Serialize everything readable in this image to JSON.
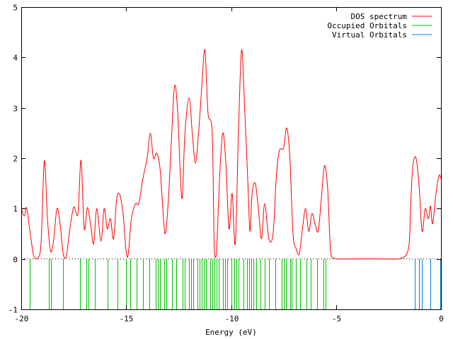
{
  "chart_data": {
    "type": "line",
    "title": "",
    "xlabel": "Energy (eV)",
    "ylabel": "",
    "xlim": [
      -20,
      0
    ],
    "ylim": [
      -1,
      5
    ],
    "x_ticks": [
      -20,
      -15,
      -10,
      -5,
      0
    ],
    "x_tick_labels": [
      "-20",
      "-15",
      "-10",
      "-5",
      "0"
    ],
    "y_ticks": [
      -1,
      0,
      1,
      2,
      3,
      4,
      5
    ],
    "y_tick_labels": [
      "-1",
      "0",
      "1",
      "2",
      "3",
      "4",
      "5"
    ],
    "grid": false,
    "legend_position": "top-right",
    "series": [
      {
        "name": "DOS spectrum",
        "kind": "line",
        "color": "#ff0000",
        "x": [
          -20.0,
          -19.85,
          -19.75,
          -19.6,
          -19.4,
          -19.2,
          -19.05,
          -18.9,
          -18.75,
          -18.6,
          -18.45,
          -18.3,
          -18.15,
          -18.0,
          -17.85,
          -17.7,
          -17.5,
          -17.3,
          -17.15,
          -17.0,
          -16.85,
          -16.7,
          -16.55,
          -16.4,
          -16.2,
          -16.05,
          -15.9,
          -15.75,
          -15.6,
          -15.45,
          -15.3,
          -15.15,
          -15.0,
          -14.9,
          -14.75,
          -14.55,
          -14.4,
          -14.2,
          -14.0,
          -13.85,
          -13.7,
          -13.55,
          -13.4,
          -13.3,
          -13.15,
          -13.0,
          -12.85,
          -12.7,
          -12.55,
          -12.35,
          -12.2,
          -12.0,
          -11.85,
          -11.7,
          -11.55,
          -11.4,
          -11.25,
          -11.1,
          -10.9,
          -10.8,
          -10.7,
          -10.55,
          -10.4,
          -10.25,
          -10.1,
          -9.95,
          -9.8,
          -9.65,
          -9.5,
          -9.35,
          -9.2,
          -9.1,
          -9.0,
          -8.85,
          -8.7,
          -8.55,
          -8.4,
          -8.2,
          -8.0,
          -7.85,
          -7.7,
          -7.5,
          -7.35,
          -7.2,
          -7.05,
          -6.9,
          -6.75,
          -6.6,
          -6.45,
          -6.3,
          -6.15,
          -6.0,
          -5.85,
          -5.7,
          -5.55,
          -5.4,
          -5.25,
          -5.05,
          -4.8,
          -4.0,
          -3.0,
          -2.0,
          -1.55,
          -1.45,
          -1.35,
          -1.2,
          -1.05,
          -0.9,
          -0.75,
          -0.6,
          -0.5,
          -0.4,
          -0.25,
          -0.1,
          0.0
        ],
        "y": [
          1.0,
          0.85,
          1.02,
          0.6,
          0.05,
          0.02,
          0.35,
          1.95,
          0.8,
          0.15,
          0.4,
          1.0,
          0.7,
          0.1,
          0.05,
          0.55,
          1.03,
          0.9,
          1.96,
          0.6,
          1.02,
          0.7,
          0.3,
          1.0,
          0.35,
          1.0,
          0.6,
          0.8,
          0.4,
          1.2,
          1.27,
          0.9,
          0.15,
          0.1,
          0.8,
          1.1,
          1.1,
          1.6,
          2.0,
          2.5,
          2.0,
          2.1,
          1.85,
          1.3,
          0.5,
          1.1,
          2.3,
          3.42,
          2.95,
          1.2,
          2.5,
          3.2,
          2.5,
          1.9,
          2.5,
          3.4,
          4.15,
          2.9,
          2.5,
          0.15,
          0.1,
          1.6,
          2.5,
          1.9,
          0.6,
          1.3,
          0.3,
          2.5,
          4.15,
          2.95,
          1.5,
          0.55,
          1.3,
          1.5,
          1.0,
          0.4,
          1.1,
          0.4,
          0.5,
          1.6,
          2.15,
          2.2,
          2.6,
          2.0,
          0.5,
          0.2,
          0.1,
          0.6,
          1.0,
          0.55,
          0.9,
          0.7,
          0.55,
          1.2,
          1.85,
          1.4,
          0.1,
          0.01,
          0.0,
          0.0,
          0.0,
          0.0,
          0.2,
          1.0,
          1.8,
          2.02,
          1.5,
          0.55,
          1.0,
          0.8,
          1.05,
          0.7,
          1.25,
          1.65,
          1.6
        ]
      },
      {
        "name": "Occupied Orbitals",
        "kind": "sticks",
        "color": "#00c000",
        "x": [
          -19.6,
          -18.7,
          -18.6,
          -18.0,
          -17.2,
          -16.9,
          -16.8,
          -16.5,
          -15.9,
          -15.4,
          -15.0,
          -14.8,
          -14.5,
          -14.2,
          -13.9,
          -13.6,
          -13.5,
          -13.4,
          -13.2,
          -13.1,
          -12.8,
          -12.6,
          -12.3,
          -12.2,
          -12.0,
          -11.9,
          -11.8,
          -11.6,
          -11.5,
          -11.4,
          -11.3,
          -11.2,
          -11.0,
          -10.9,
          -10.8,
          -10.7,
          -10.6,
          -10.4,
          -10.3,
          -10.2,
          -10.0,
          -9.85,
          -9.75,
          -9.65,
          -9.4,
          -9.25,
          -9.15,
          -9.05,
          -8.95,
          -8.8,
          -8.6,
          -8.4,
          -8.2,
          -7.9,
          -7.6,
          -7.5,
          -7.4,
          -7.2,
          -7.1,
          -6.9,
          -6.7,
          -6.4,
          -6.2,
          -5.9,
          -5.6,
          -5.5
        ],
        "y_base": -1.0,
        "y_top": 0.0
      },
      {
        "name": "Virtual Orbitals",
        "kind": "sticks",
        "color": "#0080e0",
        "x": [
          -1.25,
          -1.05,
          -0.9,
          -0.5,
          -0.05
        ],
        "y_base": -1.0,
        "y_top": 0.0
      }
    ]
  }
}
